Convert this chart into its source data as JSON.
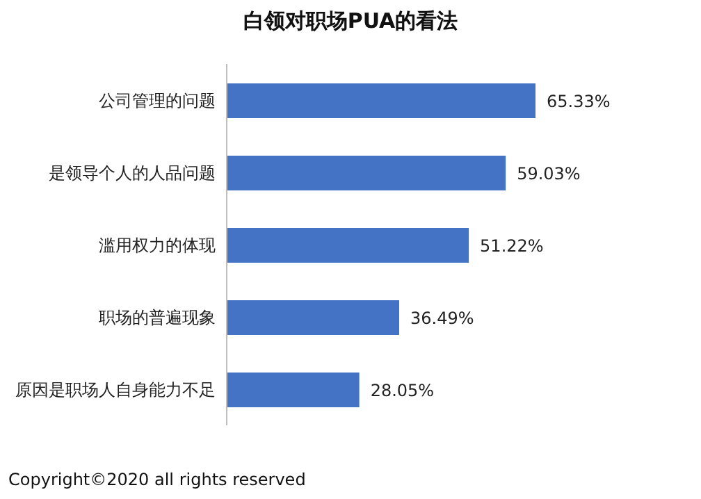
{
  "chart_data": {
    "type": "bar",
    "orientation": "horizontal",
    "title": "白领对职场PUA的看法",
    "categories": [
      "公司管理的问题",
      "是领导个人的人品问题",
      "滥用权力的体现",
      "职场的普遍现象",
      "原因是职场人自身能力不足"
    ],
    "values": [
      65.33,
      59.03,
      51.22,
      36.49,
      28.05
    ],
    "value_labels": [
      "65.33%",
      "59.03%",
      "51.22%",
      "36.49%",
      "28.05%"
    ],
    "color": "#4472c4",
    "annotations": [
      "Copyright©2020 all rights reserved"
    ]
  }
}
